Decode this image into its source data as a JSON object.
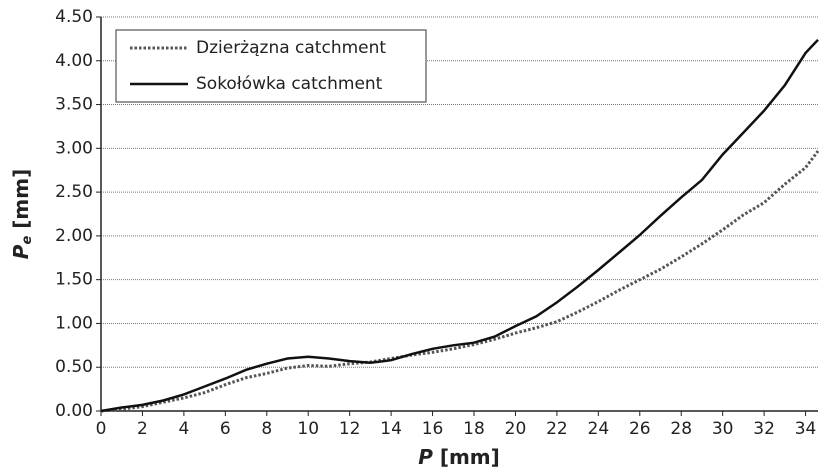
{
  "chart_data": {
    "type": "line",
    "xlabel_parts": [
      "P",
      " [mm]"
    ],
    "ylabel_parts": [
      "P",
      "e",
      " [mm]"
    ],
    "x": [
      0,
      1,
      2,
      3,
      4,
      5,
      6,
      7,
      8,
      9,
      10,
      11,
      12,
      13,
      14,
      15,
      16,
      17,
      18,
      19,
      20,
      21,
      22,
      23,
      24,
      25,
      26,
      27,
      28,
      29,
      30,
      31,
      32,
      33,
      34,
      34.6
    ],
    "series": [
      {
        "name": "Dzierżązna catchment",
        "color": "#555555",
        "dash": true,
        "values": [
          0,
          0.02,
          0.05,
          0.1,
          0.15,
          0.21,
          0.3,
          0.38,
          0.43,
          0.49,
          0.52,
          0.51,
          0.54,
          0.56,
          0.6,
          0.64,
          0.67,
          0.71,
          0.76,
          0.82,
          0.89,
          0.95,
          1.02,
          1.13,
          1.25,
          1.38,
          1.5,
          1.62,
          1.76,
          1.91,
          2.07,
          2.24,
          2.38,
          2.59,
          2.78,
          2.97
        ]
      },
      {
        "name": "Sokołówka catchment",
        "color": "#111111",
        "dash": false,
        "values": [
          0,
          0.04,
          0.07,
          0.12,
          0.19,
          0.28,
          0.37,
          0.47,
          0.54,
          0.6,
          0.62,
          0.6,
          0.57,
          0.55,
          0.58,
          0.65,
          0.71,
          0.75,
          0.78,
          0.85,
          0.97,
          1.08,
          1.24,
          1.42,
          1.61,
          1.81,
          2.01,
          2.23,
          2.44,
          2.64,
          2.93,
          3.18,
          3.43,
          3.72,
          4.09,
          4.24
        ]
      }
    ],
    "xlim": [
      0,
      34.6
    ],
    "xticks": [
      0,
      2,
      4,
      6,
      8,
      10,
      12,
      14,
      16,
      18,
      20,
      22,
      24,
      26,
      28,
      30,
      32,
      34
    ],
    "ylim": [
      0,
      4.5
    ],
    "yticks": [
      {
        "value": 0,
        "label": "0.00"
      },
      {
        "value": 0.5,
        "label": "0.50"
      },
      {
        "value": 1,
        "label": "1.00"
      },
      {
        "value": 1.5,
        "label": "1.50"
      },
      {
        "value": 2,
        "label": "2.00"
      },
      {
        "value": 2.5,
        "label": "2.50"
      },
      {
        "value": 3,
        "label": "3.00"
      },
      {
        "value": 3.5,
        "label": "3.50"
      },
      {
        "value": 4,
        "label": "4.00"
      },
      {
        "value": 4.5,
        "label": "4.50"
      }
    ],
    "grid": true,
    "legend": "top-left"
  }
}
